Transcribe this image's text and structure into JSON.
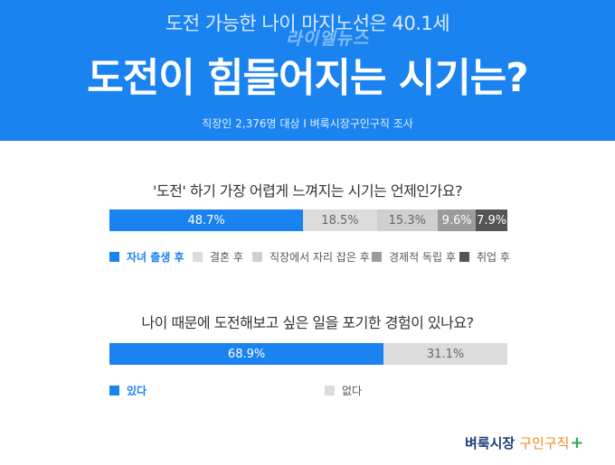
{
  "header": {
    "subtitle": "도전 가능한 나이 마지노선은 40.1세",
    "title": "도전이 힘들어지는 시기는?",
    "source": "직장인 2,376명 대상  I  벼룩시장구인구직 조사",
    "watermark": "라이엘뉴스"
  },
  "chart_data": [
    {
      "type": "bar",
      "title": "'도전' 하기 가장 어렵게 느껴지는 시기는 언제인가요?",
      "categories": [
        "자녀 출생 후",
        "결혼 후",
        "직장에서 자리 잡은 후",
        "경제적 독립 후",
        "취업 후"
      ],
      "values": [
        48.7,
        18.5,
        15.3,
        9.6,
        7.9
      ],
      "labels": [
        "48.7%",
        "18.5%",
        "15.3%",
        "9.6%",
        "7.9%"
      ],
      "colors": [
        "#1a83f0",
        "#dcdcdc",
        "#cfcfcf",
        "#9b9b9b",
        "#555555"
      ],
      "text_colors": [
        "#ffffff",
        "#666666",
        "#666666",
        "#ffffff",
        "#ffffff"
      ],
      "stacked": true,
      "legend": "bottom",
      "highlight_index": 0
    },
    {
      "type": "bar",
      "title": "나이 때문에 도전해보고 싶은 일을 포기한 경험이 있나요?",
      "categories": [
        "있다",
        "없다"
      ],
      "values": [
        68.9,
        31.1
      ],
      "labels": [
        "68.9%",
        "31.1%"
      ],
      "colors": [
        "#1a83f0",
        "#dcdcdc"
      ],
      "text_colors": [
        "#ffffff",
        "#666666"
      ],
      "stacked": true,
      "legend": "bottom",
      "highlight_index": 0
    }
  ],
  "logo": {
    "name": "벼룩시장",
    "sub": "구인구직",
    "plus": "+"
  }
}
